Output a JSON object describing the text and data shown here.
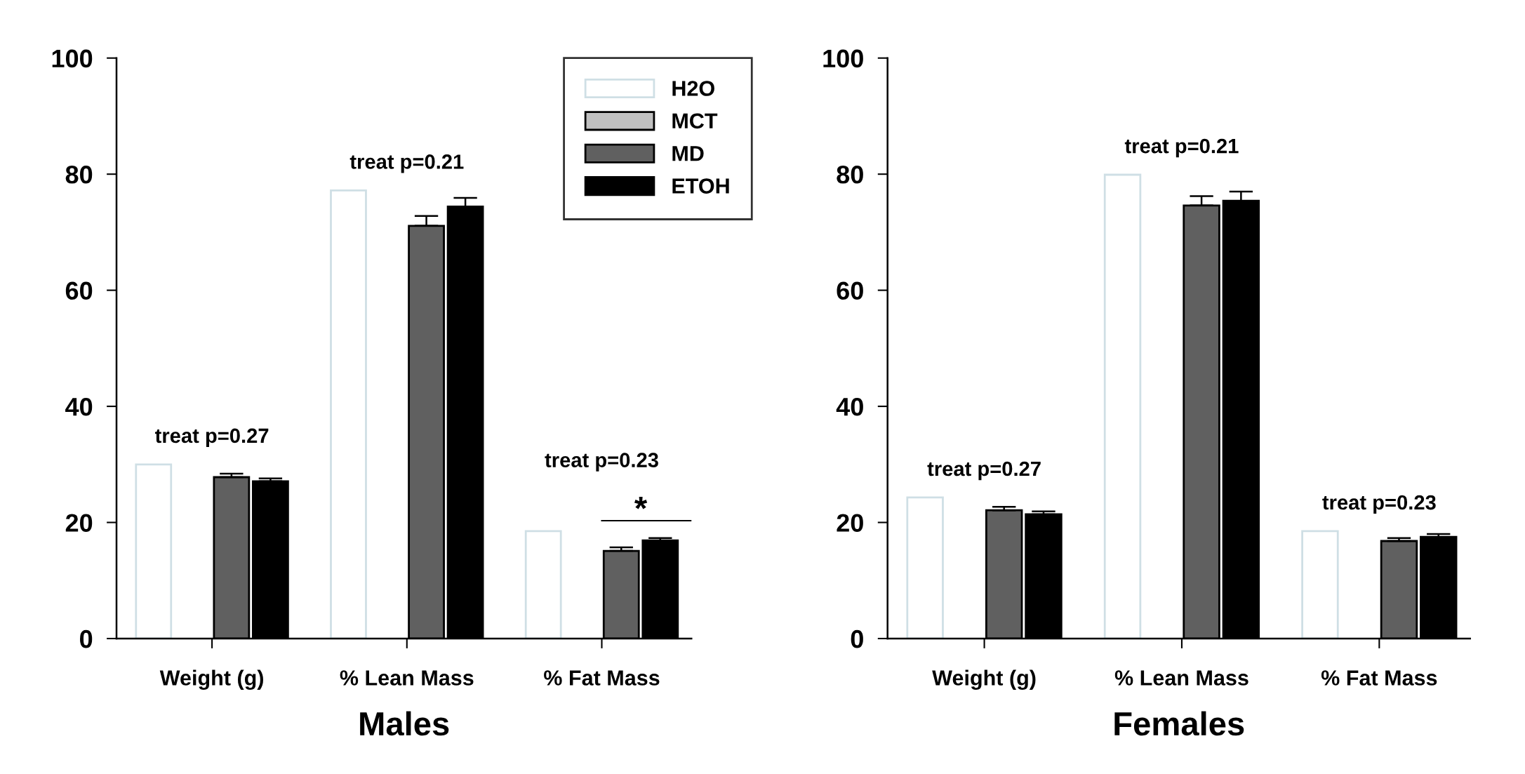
{
  "chart_data": [
    {
      "type": "bar",
      "xlabel": "Males",
      "categories": [
        "Weight (g)",
        "% Lean Mass",
        "% Fat Mass"
      ],
      "series": [
        {
          "name": "H2O",
          "color": "#ffffff",
          "values": [
            30.0,
            77.2,
            18.5
          ]
        },
        {
          "name": "MCT",
          "color": "#c0c0c0",
          "values": [
            null,
            null,
            null
          ]
        },
        {
          "name": "MD",
          "color": "#606060",
          "values": [
            27.8,
            71.1,
            15.1
          ],
          "errors": [
            0.6,
            1.7,
            0.6
          ]
        },
        {
          "name": "ETOH",
          "color": "#000000",
          "values": [
            27.1,
            74.4,
            16.9
          ],
          "errors": [
            0.5,
            1.5,
            0.4
          ]
        }
      ],
      "ylim": [
        0,
        100
      ],
      "yticks": [
        0,
        20,
        40,
        60,
        80,
        100
      ],
      "grid": false,
      "legend": "top right",
      "annotations": [
        "treat p=0.27",
        "treat p=0.21",
        "treat p=0.23",
        "*"
      ]
    },
    {
      "type": "bar",
      "xlabel": "Females",
      "categories": [
        "Weight (g)",
        "% Lean Mass",
        "% Fat Mass"
      ],
      "series": [
        {
          "color": "#ffffff",
          "values": [
            24.3,
            79.9,
            18.5
          ]
        },
        {
          "color": "#c0c0c0",
          "values": [
            null,
            null,
            null
          ]
        },
        {
          "color": "#606060",
          "values": [
            22.1,
            74.6,
            16.8
          ],
          "errors": [
            0.6,
            1.6,
            0.5
          ]
        },
        {
          "color": "#000000",
          "values": [
            21.4,
            75.4,
            17.5
          ],
          "errors": [
            0.5,
            1.6,
            0.5
          ]
        }
      ],
      "ylim": [
        0,
        100
      ],
      "yticks": [
        0,
        20,
        40,
        60,
        80,
        100
      ],
      "grid": false,
      "legend": false,
      "annotations": [
        "treat p=0.27",
        "treat p=0.21",
        "treat p=0.23"
      ]
    }
  ]
}
